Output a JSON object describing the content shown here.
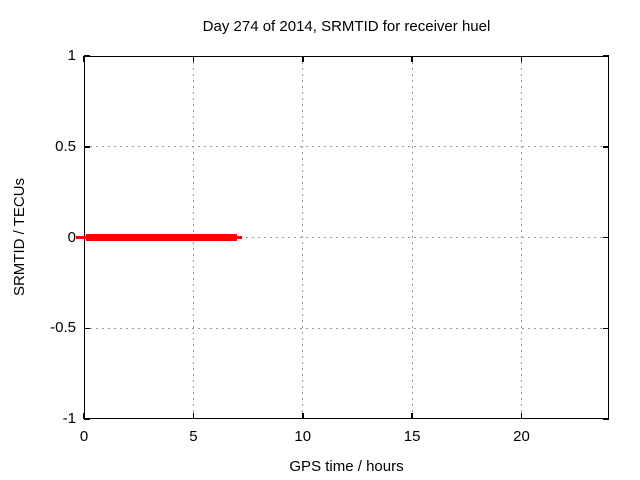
{
  "chart_data": {
    "type": "line",
    "title": "Day 274 of 2014, SRMTID for receiver huel",
    "xlabel": "GPS time / hours",
    "ylabel": "SRMTID / TECUs",
    "xlim": [
      0,
      24
    ],
    "ylim": [
      -1,
      1
    ],
    "xticks": [
      0,
      5,
      10,
      15,
      20
    ],
    "yticks": [
      1,
      0.5,
      0,
      -0.5,
      -1
    ],
    "grid": true,
    "legend": "none",
    "series": [
      {
        "name": "SRMTID",
        "color": "#ff0000",
        "y": 0,
        "x_start": 0,
        "x_end": 7.2,
        "description": "Thick horizontal red segment at SRMTID = 0 TECUs spanning GPS time 0 to about 7 hours; no data after hour 7"
      }
    ]
  },
  "colors": {
    "background": "#ffffff",
    "axis": "#000000",
    "grid": "#999999",
    "text": "#000000",
    "series": "#ff0000"
  }
}
